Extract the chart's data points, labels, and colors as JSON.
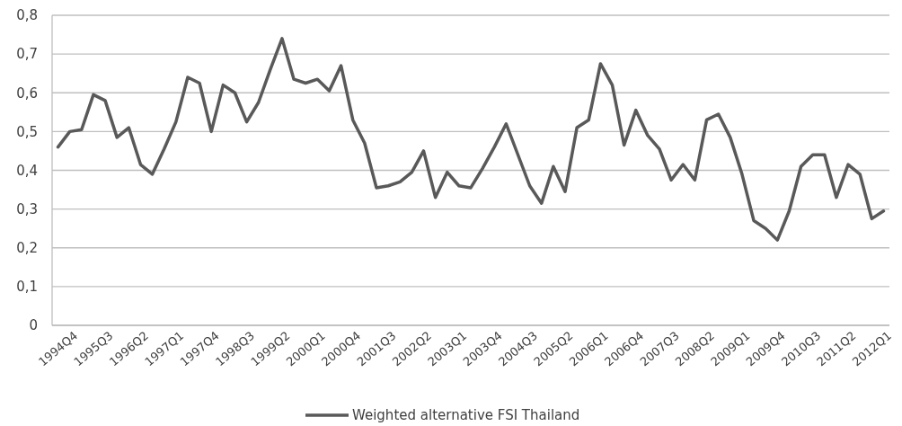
{
  "chart_data": {
    "type": "line",
    "categories": [
      "1994Q4",
      null,
      null,
      "1995Q3",
      null,
      null,
      "1996Q2",
      null,
      null,
      "1997Q1",
      null,
      null,
      "1997Q4",
      null,
      null,
      "1998Q3",
      null,
      null,
      "1999Q2",
      null,
      null,
      "2000Q1",
      null,
      null,
      "2000Q4",
      null,
      null,
      "2001Q3",
      null,
      null,
      "2002Q2",
      null,
      null,
      "2003Q1",
      null,
      null,
      "2003Q4",
      null,
      null,
      "2004Q3",
      null,
      null,
      "2005Q2",
      null,
      null,
      "2006Q1",
      null,
      null,
      "2006Q4",
      null,
      null,
      "2007Q3",
      null,
      null,
      "2008Q2",
      null,
      null,
      "2009Q1",
      null,
      null,
      "2009Q4",
      null,
      null,
      "2010Q3",
      null,
      null,
      "2011Q2",
      null,
      null,
      "2012Q1",
      null
    ],
    "series": [
      {
        "name": "Weighted alternative FSI Thailand",
        "color": "#595959",
        "values": [
          0.46,
          0.5,
          0.505,
          0.595,
          0.58,
          0.485,
          0.51,
          0.415,
          0.39,
          0.455,
          0.525,
          0.64,
          0.625,
          0.5,
          0.62,
          0.6,
          0.525,
          0.575,
          0.66,
          0.74,
          0.635,
          0.625,
          0.635,
          0.605,
          0.67,
          0.53,
          0.47,
          0.355,
          0.36,
          0.37,
          0.395,
          0.45,
          0.33,
          0.395,
          0.36,
          0.355,
          0.405,
          0.46,
          0.52,
          0.44,
          0.36,
          0.315,
          0.41,
          0.345,
          0.51,
          0.53,
          0.675,
          0.62,
          0.465,
          0.555,
          0.49,
          0.455,
          0.375,
          0.415,
          0.375,
          0.53,
          0.545,
          0.485,
          0.39,
          0.27,
          0.25,
          0.22,
          0.295,
          0.41,
          0.44,
          0.44,
          0.33,
          0.415,
          0.39,
          0.275,
          0.295
        ]
      }
    ],
    "ylim": [
      0,
      0.8
    ],
    "yticks": [
      {
        "value": 0,
        "label": "0"
      },
      {
        "value": 0.1,
        "label": "0,1"
      },
      {
        "value": 0.2,
        "label": "0,2"
      },
      {
        "value": 0.3,
        "label": "0,3"
      },
      {
        "value": 0.4,
        "label": "0,4"
      },
      {
        "value": 0.5,
        "label": "0,5"
      },
      {
        "value": 0.6,
        "label": "0,6"
      },
      {
        "value": 0.7,
        "label": "0,7"
      },
      {
        "value": 0.8,
        "label": "0,8"
      }
    ],
    "grid": "y",
    "legend": "bottom",
    "marker": "none",
    "line_style": "solid"
  }
}
